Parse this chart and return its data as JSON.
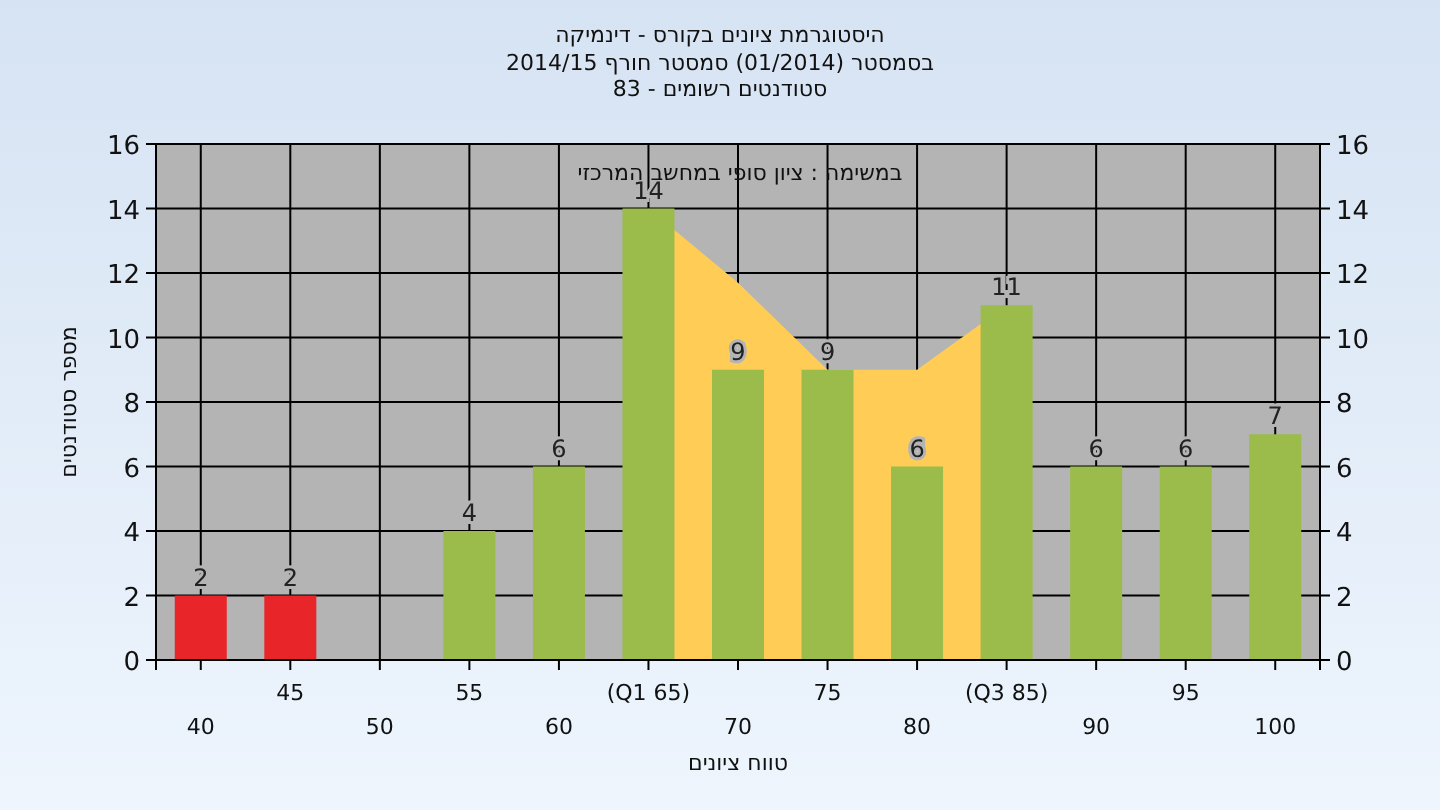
{
  "chart_data": {
    "type": "bar",
    "title": "היסטוגרמת ציונים בקורס - דינמיקה",
    "subtitle": "בסמסטר  (01/2014)  סמסטר חורף 2014/15\nסטודנטים רשומים - 83",
    "xlabel": "טווח ציונים",
    "ylabel": "מספר סטודנטים",
    "annotations": [
      "במשימה : ציון סופי במחשב המרכזי"
    ],
    "categories": [
      "40",
      "45",
      "50",
      "55",
      "60",
      "(Q1 65)",
      "70",
      "75",
      "80",
      "(Q3 85)",
      "90",
      "95",
      "100"
    ],
    "series": [
      {
        "type": "area",
        "color": "#ffcc55",
        "values": [
          null,
          null,
          null,
          null,
          null,
          14,
          11.7,
          9,
          9,
          11,
          null,
          null,
          null
        ]
      },
      {
        "value_labels": [
          "2",
          "2",
          null,
          "4",
          "6",
          "14",
          "9",
          "9",
          "6",
          "11",
          "6",
          "6",
          "7"
        ],
        "colors": [
          "#e8262a",
          "#e8262a",
          null,
          "#9bbb4a",
          "#9bbb4a",
          "#9bbb4a",
          "#9bbb4a",
          "#9bbb4a",
          "#9bbb4a",
          "#9bbb4a",
          "#9bbb4a",
          "#9bbb4a",
          "#9bbb4a"
        ],
        "values": [
          2,
          2,
          null,
          4,
          6,
          14,
          9,
          9,
          6,
          11,
          6,
          6,
          7
        ]
      }
    ],
    "grid": true,
    "ylim": [
      0,
      16
    ],
    "yticks": [
      0,
      2,
      4,
      6,
      8,
      10,
      12,
      14,
      16
    ],
    "y2lim": [
      0,
      16
    ],
    "y2ticks": [
      0,
      2,
      4,
      6,
      8,
      10,
      12,
      14,
      16
    ]
  }
}
